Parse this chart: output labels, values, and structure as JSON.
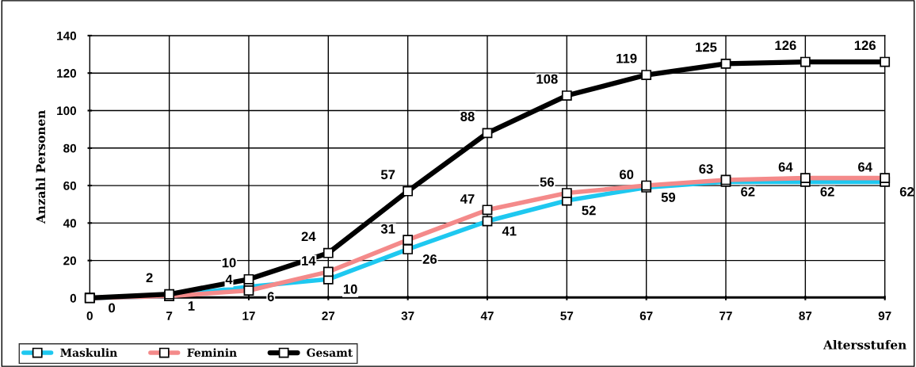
{
  "chart_data": {
    "type": "line",
    "xlabel": "Altersstufen",
    "ylabel": "Anzahl Personen",
    "categories": [
      "0",
      "7",
      "17",
      "27",
      "37",
      "47",
      "57",
      "67",
      "77",
      "87",
      "97"
    ],
    "series": [
      {
        "name": "Maskulin",
        "color": "#1ec8f0",
        "values": [
          0,
          1,
          6,
          10,
          26,
          41,
          52,
          59,
          62,
          62,
          62
        ],
        "value_labels": [
          "0",
          "1",
          "6",
          "10",
          "26",
          "41",
          "52",
          "59",
          "62",
          "62",
          "62"
        ]
      },
      {
        "name": "Feminin",
        "color": "#f48a8a",
        "values": [
          0,
          1,
          4,
          14,
          31,
          47,
          56,
          60,
          63,
          64,
          64
        ],
        "value_labels": [
          null,
          null,
          "4",
          "14",
          "31",
          "47",
          "56",
          "60",
          "63",
          "64",
          "64"
        ]
      },
      {
        "name": "Gesamt",
        "color": "#000000",
        "values": [
          0,
          2,
          10,
          24,
          57,
          88,
          108,
          119,
          125,
          126,
          126
        ],
        "value_labels": [
          null,
          "2",
          "10",
          "24",
          "57",
          "88",
          "108",
          "119",
          "125",
          "126",
          "126"
        ]
      }
    ],
    "ylim": [
      0,
      140
    ],
    "yticks": [
      0,
      20,
      40,
      60,
      80,
      100,
      120,
      140
    ],
    "grid": true,
    "legend": "bottom left",
    "marker": "square",
    "line_style": "solid"
  }
}
